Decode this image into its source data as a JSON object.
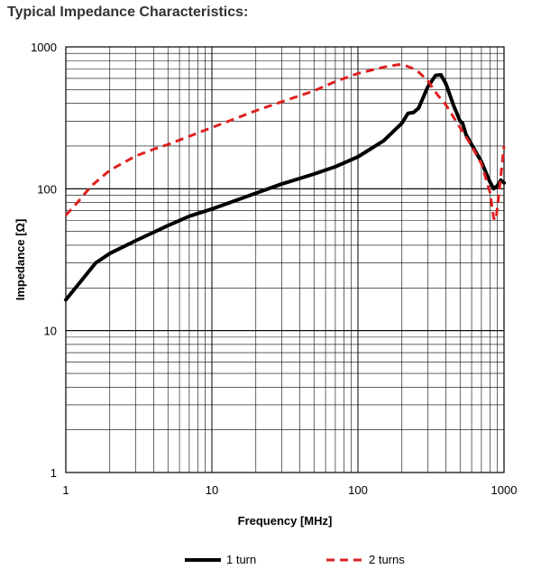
{
  "page": {
    "heading": "Typical Impedance Characteristics:"
  },
  "chart_data": {
    "type": "line",
    "title": "",
    "xlabel": "Frequency [MHz]",
    "ylabel": "Impedance [Ω]",
    "x_scale": "log",
    "y_scale": "log",
    "xlim": [
      1,
      1000
    ],
    "ylim": [
      1,
      1000
    ],
    "x_ticks": [
      1,
      10,
      100,
      1000
    ],
    "x_tick_labels": [
      "1",
      "10",
      "100",
      "1000"
    ],
    "y_ticks": [
      1,
      10,
      100,
      1000
    ],
    "y_tick_labels": [
      "1",
      "10",
      "100",
      "1000"
    ],
    "grid": true,
    "legend_position": "bottom",
    "series": [
      {
        "name": "1 turn",
        "color": "#000000",
        "dash": "solid",
        "points": [
          [
            1,
            16.5
          ],
          [
            1.3,
            23
          ],
          [
            1.6,
            30
          ],
          [
            2,
            35
          ],
          [
            3,
            43
          ],
          [
            5,
            55
          ],
          [
            7,
            64
          ],
          [
            10,
            72
          ],
          [
            20,
            93
          ],
          [
            30,
            108
          ],
          [
            50,
            127
          ],
          [
            70,
            143
          ],
          [
            100,
            168
          ],
          [
            150,
            218
          ],
          [
            200,
            290
          ],
          [
            220,
            340
          ],
          [
            240,
            345
          ],
          [
            260,
            370
          ],
          [
            300,
            520
          ],
          [
            340,
            630
          ],
          [
            370,
            635
          ],
          [
            400,
            550
          ],
          [
            450,
            390
          ],
          [
            500,
            300
          ],
          [
            520,
            290
          ],
          [
            550,
            240
          ],
          [
            600,
            205
          ],
          [
            700,
            155
          ],
          [
            800,
            112
          ],
          [
            850,
            100
          ],
          [
            900,
            105
          ],
          [
            950,
            115
          ],
          [
            1000,
            110
          ]
        ]
      },
      {
        "name": "2 turns",
        "color": "#e02020",
        "dash": "dashed",
        "points": [
          [
            1,
            65
          ],
          [
            1.2,
            80
          ],
          [
            1.5,
            105
          ],
          [
            2,
            135
          ],
          [
            3,
            170
          ],
          [
            4,
            190
          ],
          [
            5,
            205
          ],
          [
            10,
            270
          ],
          [
            20,
            355
          ],
          [
            30,
            410
          ],
          [
            50,
            490
          ],
          [
            70,
            570
          ],
          [
            100,
            650
          ],
          [
            150,
            720
          ],
          [
            190,
            750
          ],
          [
            210,
            740
          ],
          [
            250,
            690
          ],
          [
            300,
            580
          ],
          [
            350,
            460
          ],
          [
            400,
            390
          ],
          [
            500,
            270
          ],
          [
            600,
            200
          ],
          [
            700,
            150
          ],
          [
            800,
            95
          ],
          [
            850,
            62
          ],
          [
            880,
            60
          ],
          [
            920,
            90
          ],
          [
            960,
            135
          ],
          [
            1000,
            200
          ]
        ]
      }
    ]
  }
}
